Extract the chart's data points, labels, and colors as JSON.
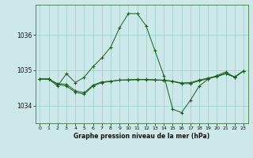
{
  "background_color": "#cce8e8",
  "plot_bg_color": "#cce8e8",
  "line_color": "#1a5c1a",
  "grid_color": "#99cccc",
  "xlabel": "Graphe pression niveau de la mer (hPa)",
  "ylim": [
    1033.5,
    1036.85
  ],
  "xlim": [
    -0.5,
    23.5
  ],
  "yticks": [
    1034,
    1035,
    1036
  ],
  "xticks": [
    0,
    1,
    2,
    3,
    4,
    5,
    6,
    7,
    8,
    9,
    10,
    11,
    12,
    13,
    14,
    15,
    16,
    17,
    18,
    19,
    20,
    21,
    22,
    23
  ],
  "series": [
    {
      "x": [
        0,
        1,
        2,
        3,
        4,
        5,
        6,
        7,
        8,
        9,
        10,
        11,
        12,
        13,
        14,
        15,
        16,
        17,
        18,
        19,
        20,
        21,
        22,
        23
      ],
      "y": [
        1034.75,
        1034.75,
        1034.55,
        1034.9,
        1034.65,
        1034.8,
        1035.1,
        1035.35,
        1035.65,
        1036.2,
        1036.6,
        1036.6,
        1036.25,
        1035.55,
        1034.85,
        1033.9,
        1033.8,
        1034.15,
        1034.55,
        1034.75,
        1034.85,
        1034.95,
        1034.8,
        1034.98
      ]
    },
    {
      "x": [
        0,
        1,
        2,
        3,
        4,
        5,
        6,
        7,
        8,
        9,
        10,
        11,
        12,
        13,
        14,
        15,
        16,
        17,
        18,
        19,
        20,
        21,
        22,
        23
      ],
      "y": [
        1034.75,
        1034.75,
        1034.6,
        1034.55,
        1034.38,
        1034.32,
        1034.55,
        1034.65,
        1034.68,
        1034.72,
        1034.72,
        1034.73,
        1034.73,
        1034.72,
        1034.71,
        1034.68,
        1034.62,
        1034.62,
        1034.7,
        1034.76,
        1034.82,
        1034.9,
        1034.8,
        1034.98
      ]
    },
    {
      "x": [
        0,
        1,
        2,
        3,
        4,
        5,
        6,
        7,
        8,
        9,
        10,
        11,
        12,
        13,
        14,
        15,
        16,
        17,
        18,
        19,
        20,
        21,
        22,
        23
      ],
      "y": [
        1034.75,
        1034.75,
        1034.62,
        1034.6,
        1034.42,
        1034.36,
        1034.58,
        1034.67,
        1034.69,
        1034.72,
        1034.73,
        1034.74,
        1034.74,
        1034.73,
        1034.72,
        1034.69,
        1034.64,
        1034.65,
        1034.72,
        1034.78,
        1034.83,
        1034.91,
        1034.81,
        1034.98
      ]
    }
  ]
}
